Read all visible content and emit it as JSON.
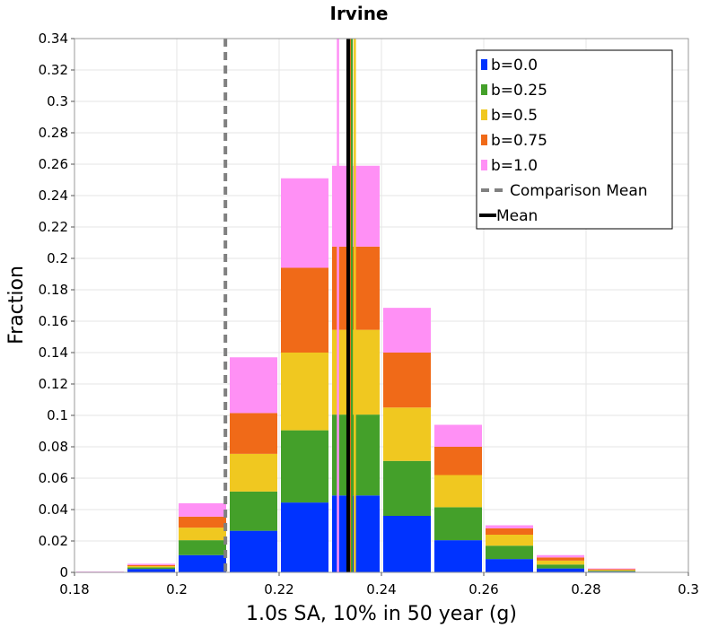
{
  "chart_data": {
    "type": "bar",
    "stacked": true,
    "title": "Irvine",
    "xlabel": "1.0s SA, 10% in 50 year (g)",
    "ylabel": "Fraction",
    "xlim": [
      0.18,
      0.3
    ],
    "ylim": [
      0,
      0.34
    ],
    "xticks": [
      "0.18",
      "0.2",
      "0.22",
      "0.24",
      "0.26",
      "0.28",
      "0.3"
    ],
    "yticks": [
      "0",
      "0.02",
      "0.04",
      "0.06",
      "0.08",
      "0.1",
      "0.12",
      "0.14",
      "0.16",
      "0.18",
      "0.2",
      "0.22",
      "0.24",
      "0.26",
      "0.28",
      "0.3",
      "0.32",
      "0.34"
    ],
    "grid": true,
    "legend_position": "top-right",
    "bin_width": 0.01,
    "bin_starts": [
      0.18,
      0.19,
      0.2,
      0.21,
      0.22,
      0.23,
      0.24,
      0.25,
      0.26,
      0.27,
      0.28,
      0.29
    ],
    "series": [
      {
        "name": "b=0.0",
        "color": "#0033ff",
        "values": [
          0.0,
          0.0022,
          0.011,
          0.0265,
          0.0445,
          0.049,
          0.036,
          0.0205,
          0.0085,
          0.0025,
          0.0005,
          0.0
        ]
      },
      {
        "name": "b=0.25",
        "color": "#44a02a",
        "values": [
          0.0,
          0.001,
          0.0095,
          0.025,
          0.046,
          0.0515,
          0.035,
          0.021,
          0.0085,
          0.0025,
          0.0005,
          0.0
        ]
      },
      {
        "name": "b=0.5",
        "color": "#f0c820",
        "values": [
          0.0,
          0.0008,
          0.008,
          0.024,
          0.0495,
          0.054,
          0.034,
          0.0205,
          0.007,
          0.0025,
          0.0005,
          0.0
        ]
      },
      {
        "name": "b=0.75",
        "color": "#f06a18",
        "values": [
          0.0,
          0.0007,
          0.007,
          0.026,
          0.054,
          0.053,
          0.035,
          0.018,
          0.004,
          0.002,
          0.0005,
          0.0
        ]
      },
      {
        "name": "b=1.0",
        "color": "#ff90f5",
        "values": [
          0.0005,
          0.0008,
          0.0085,
          0.0355,
          0.057,
          0.0515,
          0.0285,
          0.014,
          0.002,
          0.0015,
          0.0005,
          0.0
        ]
      }
    ],
    "mean_lines": [
      {
        "name": "b=0.0",
        "color": "#0033ff",
        "x": 0.2336
      },
      {
        "name": "b=0.25",
        "color": "#44a02a",
        "x": 0.2342
      },
      {
        "name": "b=0.5",
        "color": "#f0c820",
        "x": 0.2348
      },
      {
        "name": "b=0.75",
        "color": "#f06a18",
        "x": 0.2338
      },
      {
        "name": "b=1.0",
        "color": "#ff90f5",
        "x": 0.2315
      }
    ],
    "comparison_mean": {
      "name": "Comparison Mean",
      "color": "#808080",
      "x": 0.2095,
      "style": "dashed"
    },
    "mean": {
      "name": "Mean",
      "color": "#000000",
      "x": 0.2335
    }
  }
}
